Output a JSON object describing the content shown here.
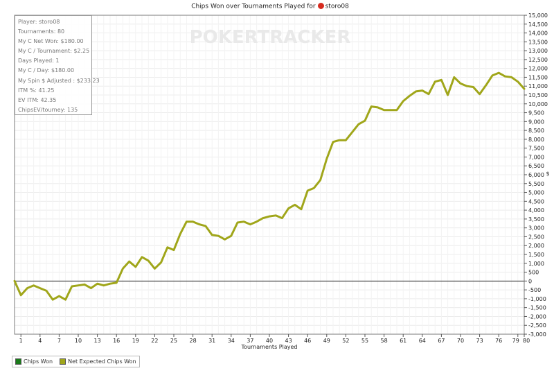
{
  "header": {
    "title_prefix": "Chips Won over Tournaments Played for",
    "player": "storo08"
  },
  "watermark": "POKERTRACKER",
  "stats": [
    "Player: storo08",
    "Tournaments: 80",
    "My C Net Won: $180.00",
    "My C / Tournament: $2.25",
    "Days Played: 1",
    "My C / Day: $180.00",
    "My Spin $ Adjusted : $233.23",
    "ITM %: 41.25",
    "EV ITM: 42.35",
    "ChipsEV/tourney: 135"
  ],
  "legend": [
    {
      "label": "Chips Won",
      "color": "#1a7a1a"
    },
    {
      "label": "Net Expected Chips Won",
      "color": "#a0a61a"
    }
  ],
  "chart_data": {
    "type": "line",
    "title": "Chips Won over Tournaments Played for storo08",
    "xlabel": "Tournaments Played",
    "ylabel": "$",
    "xlim": [
      0,
      80
    ],
    "ylim": [
      -3000,
      15000
    ],
    "yticks": [
      -3000,
      -2500,
      -2000,
      -1500,
      -1000,
      -500,
      0,
      500,
      1000,
      1500,
      2000,
      2500,
      3000,
      3500,
      4000,
      4500,
      5000,
      5500,
      6000,
      6500,
      7000,
      7500,
      8000,
      8500,
      9000,
      9500,
      10000,
      10500,
      11000,
      11500,
      12000,
      12500,
      13000,
      13500,
      14000,
      14500,
      15000
    ],
    "ytick_labels": [
      "-3,000",
      "-2,500",
      "-2,000",
      "-1,500",
      "-1,000",
      "-500",
      "0",
      "500",
      "1,000",
      "1,500",
      "2,000",
      "2,500",
      "3,000",
      "3,500",
      "4,000",
      "4,500",
      "5,000",
      "5,500",
      "6,000",
      "6,500",
      "7,000",
      "7,500",
      "8,000",
      "8,500",
      "9,000",
      "9,500",
      "10,000",
      "10,500",
      "11,000",
      "11,500",
      "12,000",
      "12,500",
      "13,000",
      "13,500",
      "14,000",
      "14,500",
      "15,000"
    ],
    "xticks": [
      1,
      4,
      7,
      10,
      13,
      16,
      19,
      22,
      25,
      28,
      31,
      34,
      37,
      40,
      43,
      46,
      49,
      52,
      55,
      58,
      61,
      64,
      67,
      70,
      73,
      76,
      79,
      80
    ],
    "grid": true,
    "legend_position": "bottom-left",
    "series": [
      {
        "name": "Net Expected Chips Won",
        "color": "#a0a61a",
        "x": [
          0,
          1,
          2,
          3,
          4,
          5,
          6,
          7,
          8,
          9,
          10,
          11,
          12,
          13,
          14,
          15,
          16,
          17,
          18,
          19,
          20,
          21,
          22,
          23,
          24,
          25,
          26,
          27,
          28,
          29,
          30,
          31,
          32,
          33,
          34,
          35,
          36,
          37,
          38,
          39,
          40,
          41,
          42,
          43,
          44,
          45,
          46,
          47,
          48,
          49,
          50,
          51,
          52,
          53,
          54,
          55,
          56,
          57,
          58,
          59,
          60,
          61,
          62,
          63,
          64,
          65,
          66,
          67,
          68,
          69,
          70,
          71,
          72,
          73,
          74,
          75,
          76,
          77,
          78,
          79,
          80
        ],
        "y": [
          0,
          -800,
          -400,
          -250,
          -400,
          -550,
          -1050,
          -850,
          -1050,
          -300,
          -250,
          -200,
          -400,
          -150,
          -250,
          -150,
          -100,
          700,
          1100,
          800,
          1350,
          1150,
          700,
          1050,
          1900,
          1750,
          2650,
          3350,
          3350,
          3200,
          3100,
          2600,
          2550,
          2350,
          2550,
          3300,
          3350,
          3200,
          3350,
          3550,
          3650,
          3700,
          3550,
          4100,
          4300,
          4050,
          5100,
          5250,
          5700,
          6900,
          7850,
          7950,
          7950,
          8400,
          8850,
          9050,
          9850,
          9800,
          9650,
          9650,
          9650,
          10150,
          10450,
          10700,
          10750,
          10550,
          11250,
          11350,
          10500,
          11500,
          11150,
          11000,
          10950,
          10550,
          11050,
          11600,
          11750,
          11550,
          11500,
          11250,
          10850
        ]
      }
    ]
  }
}
